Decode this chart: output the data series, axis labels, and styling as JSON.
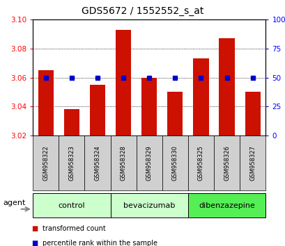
{
  "title": "GDS5672 / 1552552_s_at",
  "samples": [
    "GSM958322",
    "GSM958323",
    "GSM958324",
    "GSM958328",
    "GSM958329",
    "GSM958330",
    "GSM958325",
    "GSM958326",
    "GSM958327"
  ],
  "bar_values": [
    3.065,
    3.038,
    3.055,
    3.093,
    3.06,
    3.05,
    3.073,
    3.087,
    3.05
  ],
  "percentile_values": [
    50,
    50,
    50,
    50,
    50,
    50,
    50,
    50,
    50
  ],
  "bar_color": "#cc1100",
  "dot_color": "#0000cc",
  "ylim_left": [
    3.02,
    3.1
  ],
  "ylim_right": [
    0,
    100
  ],
  "yticks_left": [
    3.02,
    3.04,
    3.06,
    3.08,
    3.1
  ],
  "yticks_right": [
    0,
    25,
    50,
    75,
    100
  ],
  "ytick_labels_right": [
    "0",
    "25",
    "50",
    "75",
    "100%"
  ],
  "grid_vals": [
    3.04,
    3.06,
    3.08
  ],
  "groups": [
    {
      "label": "control",
      "indices": [
        0,
        1,
        2
      ],
      "color": "#ccffcc"
    },
    {
      "label": "bevacizumab",
      "indices": [
        3,
        4,
        5
      ],
      "color": "#ccffcc"
    },
    {
      "label": "dibenzazepine",
      "indices": [
        6,
        7,
        8
      ],
      "color": "#55ee55"
    }
  ],
  "agent_label": "agent",
  "legend": [
    {
      "label": "transformed count",
      "color": "#cc1100"
    },
    {
      "label": "percentile rank within the sample",
      "color": "#0000cc"
    }
  ],
  "bar_width": 0.6,
  "background_color": "#ffffff",
  "title_fontsize": 10,
  "tick_fontsize": 7.5,
  "sample_fontsize": 6,
  "group_fontsize": 8,
  "legend_fontsize": 7
}
